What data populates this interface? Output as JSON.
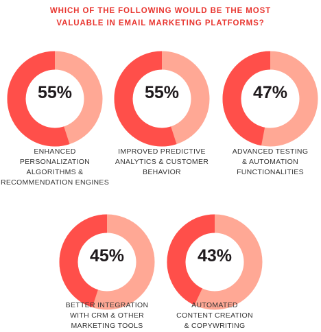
{
  "title": {
    "line1": "WHICH OF THE FOLLOWING WOULD BE THE MOST",
    "line2": "VALUABLE IN EMAIL MARKETING PLATFORMS?"
  },
  "colors": {
    "title": "#e8352f",
    "segment_dark": "#ff4f4a",
    "segment_light": "#ffa895",
    "percent_text": "#1f1a1d",
    "label_text": "#333333"
  },
  "chart_data": {
    "type": "pie",
    "style": "donut",
    "title": "WHICH OF THE FOLLOWING WOULD BE THE MOST VALUABLE IN EMAIL MARKETING PLATFORMS?",
    "unit": "%",
    "items": [
      {
        "value": 55,
        "display": "55%",
        "label_lines": [
          "ENHANCED",
          "PERSONALIZATION",
          "ALGORITHMS &",
          "RECOMMENDATION ENGINES"
        ]
      },
      {
        "value": 55,
        "display": "55%",
        "label_lines": [
          "IMPROVED PREDICTIVE",
          "ANALYTICS & CUSTOMER",
          "BEHAVIOR"
        ]
      },
      {
        "value": 47,
        "display": "47%",
        "label_lines": [
          "ADVANCED TESTING",
          "& AUTOMATION",
          "FUNCTIONALITIES"
        ]
      },
      {
        "value": 45,
        "display": "45%",
        "label_lines": [
          "BETTER INTEGRATION",
          "WITH CRM & OTHER",
          "MARKETING TOOLS"
        ]
      },
      {
        "value": 43,
        "display": "43%",
        "label_lines": [
          "AUTOMATED",
          "CONTENT CREATION",
          "& COPYWRITING"
        ]
      }
    ]
  }
}
